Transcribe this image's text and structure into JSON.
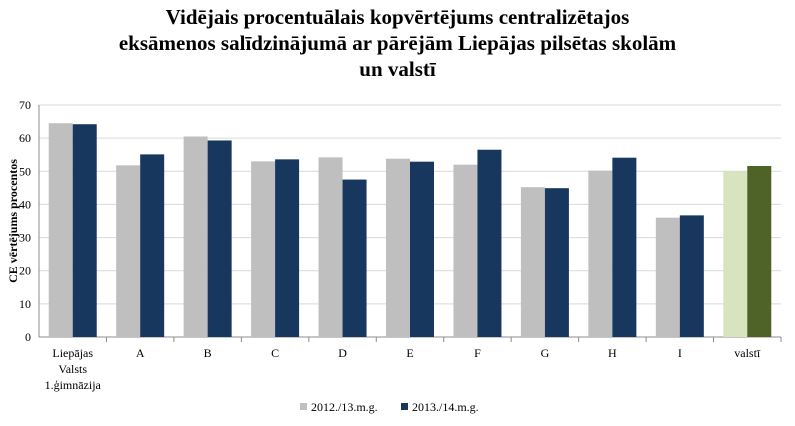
{
  "chart_data": {
    "type": "bar",
    "title_lines": [
      "Vidējais procentuālais kopvērtējums  centralizētajos",
      "eksāmenos  salīdzinājumā  ar pārējām Liepājas pilsētas skolām",
      "un valstī"
    ],
    "ylabel": "CE vērtējums  procentos",
    "xlabel": "",
    "ylim": [
      0,
      70
    ],
    "yticks": [
      0,
      10,
      20,
      30,
      40,
      50,
      60,
      70
    ],
    "grid": true,
    "legend_position": "bottom",
    "categories": [
      [
        "Liepājas",
        "Valsts",
        "1.ģimnāzija"
      ],
      [
        "A"
      ],
      [
        "B"
      ],
      [
        "C"
      ],
      [
        "D"
      ],
      [
        "E"
      ],
      [
        "F"
      ],
      [
        "G"
      ],
      [
        "H"
      ],
      [
        "I"
      ],
      [
        "valstī"
      ]
    ],
    "series": [
      {
        "name": "2012./13.m.g.",
        "color": "#bfbfbf",
        "values": [
          64.5,
          51.8,
          60.5,
          53.0,
          54.2,
          53.8,
          52.0,
          45.2,
          50.2,
          36.0,
          50.0
        ]
      },
      {
        "name": "2013./14.m.g.",
        "color": "#17375e",
        "values": [
          64.2,
          55.1,
          59.3,
          53.6,
          47.5,
          52.9,
          56.5,
          44.9,
          54.1,
          36.7,
          51.6
        ]
      }
    ],
    "highlight_colors": {
      "category_index": 10,
      "colors": [
        "#d7e4bd",
        "#4f6228"
      ]
    }
  }
}
